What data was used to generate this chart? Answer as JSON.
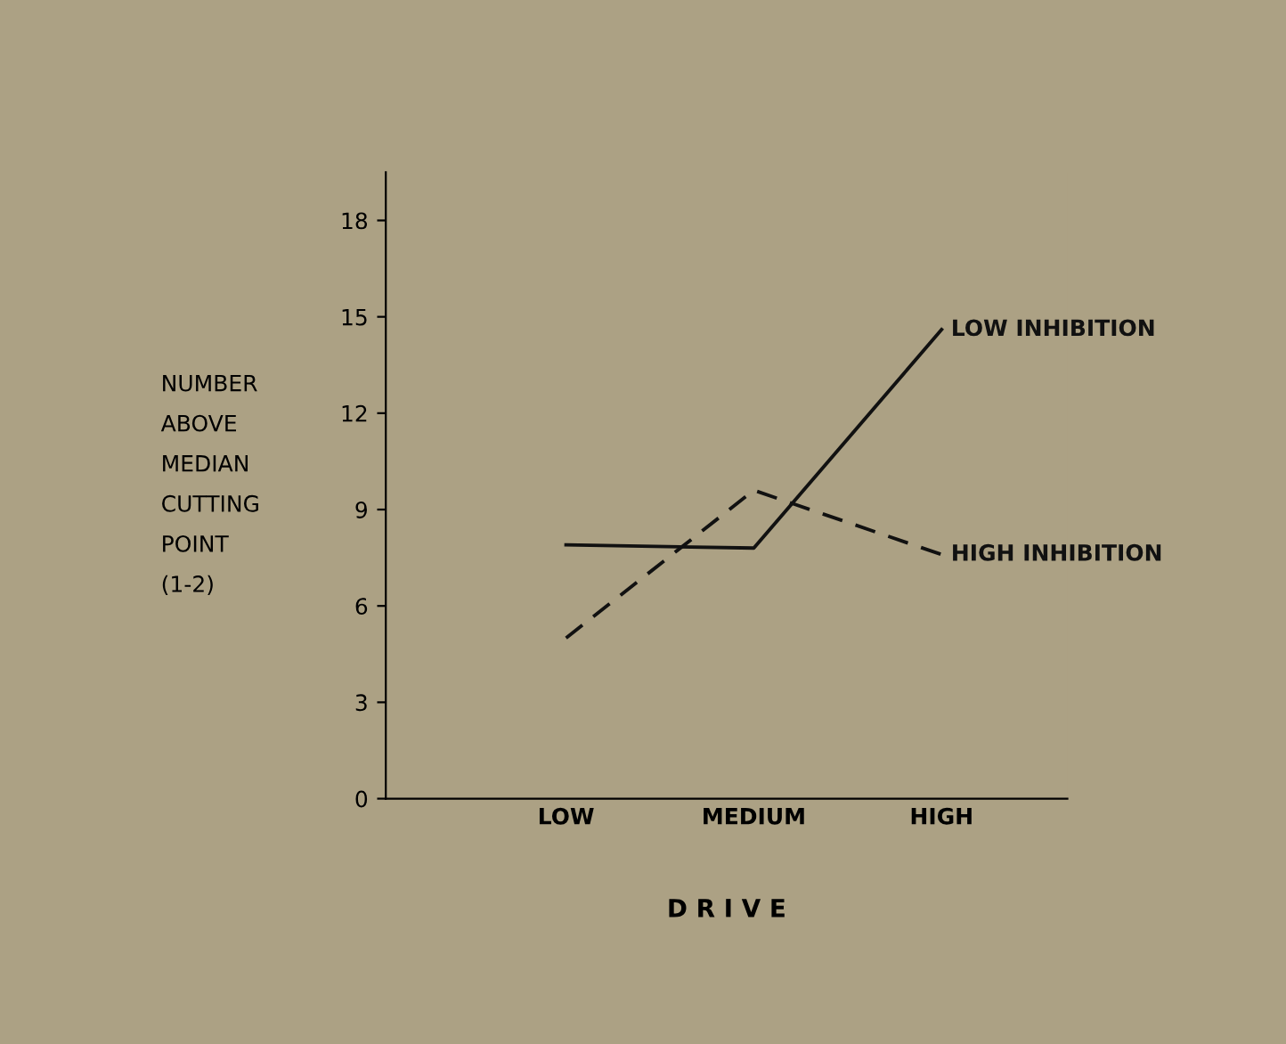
{
  "chart_data": {
    "type": "line",
    "xlabel": "D R I V E",
    "ylabel": "NUMBER\nABOVE\nMEDIAN\nCUTTING\nPOINT\n(1-2)",
    "categories": [
      "LOW",
      "MEDIUM",
      "HIGH"
    ],
    "series": [
      {
        "name": "LOW INHIBITION",
        "color": "#111111",
        "line_style": "solid",
        "values": [
          7.9,
          7.8,
          14.6
        ]
      },
      {
        "name": "HIGH INHIBITION",
        "color": "#111111",
        "line_style": "dashed",
        "values": [
          5.0,
          9.6,
          7.6
        ]
      }
    ],
    "ylim": [
      0,
      19.5
    ],
    "yticks": [
      0,
      3,
      6,
      9,
      12,
      15,
      18
    ],
    "grid": false,
    "legend": false,
    "marker": "none"
  }
}
